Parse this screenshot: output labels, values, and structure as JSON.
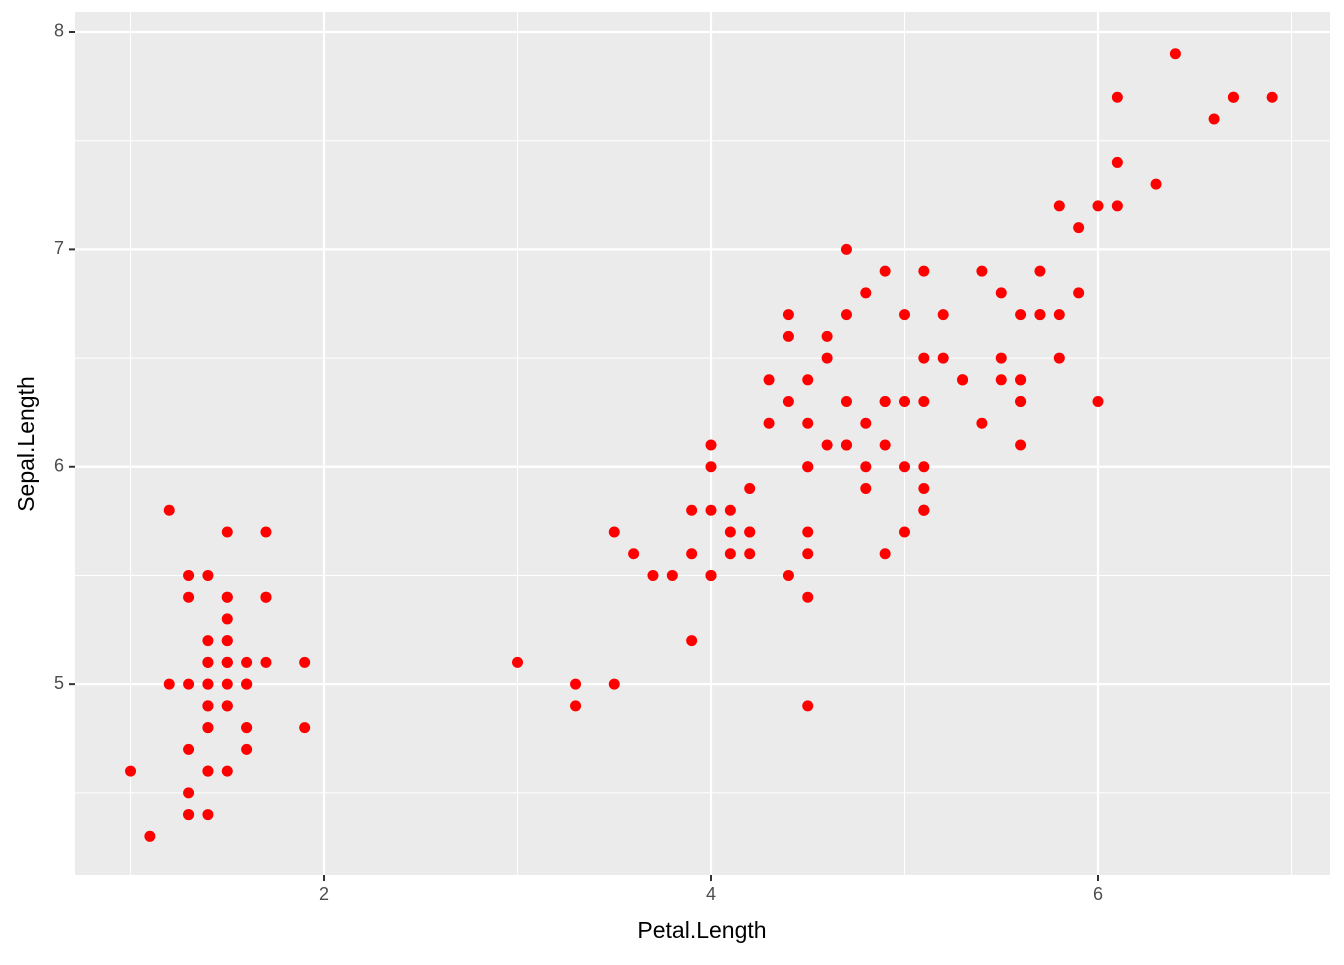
{
  "chart_data": {
    "type": "scatter",
    "x_label": "Petal.Length",
    "y_label": "Sepal.Length",
    "x": [
      1.4,
      1.4,
      1.3,
      1.5,
      1.4,
      1.7,
      1.4,
      1.5,
      1.4,
      1.5,
      1.5,
      1.6,
      1.4,
      1.1,
      1.2,
      1.5,
      1.3,
      1.4,
      1.7,
      1.5,
      1.7,
      1.5,
      1.0,
      1.7,
      1.9,
      1.6,
      1.6,
      1.5,
      1.4,
      1.6,
      1.6,
      1.5,
      1.5,
      1.4,
      1.5,
      1.2,
      1.3,
      1.4,
      1.3,
      1.5,
      1.3,
      1.3,
      1.3,
      1.6,
      1.9,
      1.4,
      1.6,
      1.4,
      1.5,
      1.4,
      4.7,
      4.5,
      4.9,
      4.0,
      4.6,
      4.5,
      4.7,
      3.3,
      4.6,
      3.9,
      3.5,
      4.2,
      4.0,
      4.7,
      3.6,
      4.4,
      4.5,
      4.1,
      4.5,
      3.9,
      4.8,
      4.0,
      4.9,
      4.7,
      4.3,
      4.4,
      4.8,
      5.0,
      4.5,
      3.5,
      3.8,
      3.7,
      3.9,
      5.1,
      4.5,
      4.5,
      4.7,
      4.4,
      4.1,
      4.0,
      4.4,
      4.6,
      4.0,
      3.3,
      4.2,
      4.2,
      4.2,
      4.3,
      3.0,
      4.1,
      6.0,
      5.1,
      5.9,
      5.6,
      5.8,
      6.6,
      4.5,
      6.3,
      5.8,
      6.1,
      5.1,
      5.3,
      5.5,
      5.0,
      5.1,
      5.3,
      5.5,
      6.7,
      6.9,
      5.0,
      5.7,
      4.9,
      6.7,
      4.9,
      5.7,
      6.0,
      4.8,
      4.9,
      5.6,
      5.8,
      6.1,
      6.4,
      5.6,
      5.1,
      5.6,
      6.1,
      5.6,
      5.5,
      4.8,
      5.4,
      5.6,
      5.1,
      5.1,
      5.9,
      5.7,
      5.2,
      5.0,
      5.2,
      5.4,
      5.1
    ],
    "y": [
      5.1,
      4.9,
      4.7,
      4.6,
      5.0,
      5.4,
      4.6,
      5.0,
      4.4,
      4.9,
      5.4,
      4.8,
      4.8,
      4.3,
      5.8,
      5.7,
      5.4,
      5.1,
      5.7,
      5.1,
      5.4,
      5.1,
      4.6,
      5.1,
      4.8,
      5.0,
      5.0,
      5.2,
      5.2,
      4.7,
      4.8,
      5.4,
      5.2,
      5.5,
      4.9,
      5.0,
      5.5,
      4.9,
      4.4,
      5.1,
      5.0,
      4.5,
      4.4,
      5.0,
      5.1,
      4.8,
      5.1,
      4.6,
      5.3,
      5.0,
      7.0,
      6.4,
      6.9,
      5.5,
      6.5,
      5.7,
      6.3,
      4.9,
      6.6,
      5.2,
      5.0,
      5.9,
      6.0,
      6.1,
      5.6,
      6.7,
      5.6,
      5.8,
      6.2,
      5.6,
      5.9,
      6.1,
      6.3,
      6.1,
      6.4,
      6.6,
      6.8,
      6.7,
      6.0,
      5.7,
      5.5,
      5.5,
      5.8,
      6.0,
      5.4,
      6.0,
      6.7,
      6.3,
      5.6,
      5.5,
      5.5,
      6.1,
      5.8,
      5.0,
      5.6,
      5.7,
      5.7,
      6.2,
      5.1,
      5.7,
      6.3,
      5.8,
      7.1,
      6.3,
      6.5,
      7.6,
      4.9,
      7.3,
      6.7,
      7.2,
      6.5,
      6.4,
      6.8,
      5.7,
      5.8,
      6.4,
      6.5,
      7.7,
      7.7,
      6.0,
      6.9,
      5.6,
      7.7,
      6.3,
      6.7,
      7.2,
      6.2,
      6.1,
      6.4,
      7.2,
      7.4,
      7.9,
      6.4,
      6.3,
      6.1,
      7.7,
      6.3,
      6.4,
      6.0,
      6.9,
      6.7,
      6.9,
      5.8,
      6.8,
      6.7,
      6.7,
      6.3,
      6.5,
      6.2,
      5.9
    ],
    "color": "#ff0000",
    "xlim": [
      0.713,
      7.199
    ],
    "ylim": [
      4.122,
      8.092
    ],
    "xticks": [
      2,
      4,
      6
    ],
    "yticks": [
      5,
      6,
      7,
      8
    ],
    "x_minor_breaks": [
      1,
      3,
      5,
      7
    ],
    "y_minor_breaks": [
      4.5,
      5.5,
      6.5,
      7.5
    ],
    "grid": true
  }
}
